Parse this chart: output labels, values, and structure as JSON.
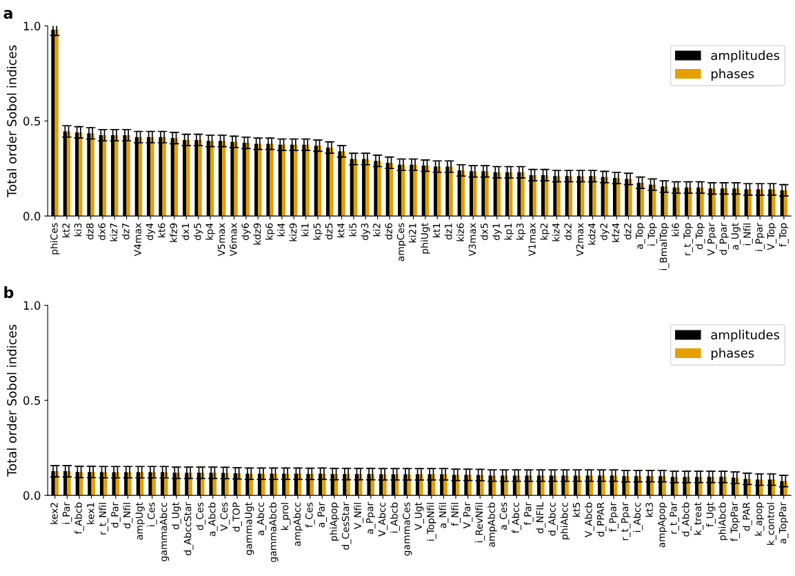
{
  "chart_data": [
    {
      "type": "bar",
      "annotations": [
        "a"
      ],
      "ylabel": "Total order Sobol indices",
      "ylim": [
        0,
        1.0
      ],
      "yticks": [
        {
          "value": 0,
          "label": "0.0"
        },
        {
          "value": 0.5,
          "label": "0.5"
        },
        {
          "value": 1.0,
          "label": "1.0"
        }
      ],
      "grid": false,
      "legend": "top right",
      "categories": [
        "phiCes",
        "kt2",
        "ki3",
        "dz8",
        "dx6",
        "kiz7",
        "dz7",
        "V4max",
        "dy4",
        "kt6",
        "kfz9",
        "dx1",
        "dy5",
        "kp4",
        "V5max",
        "V6max",
        "dy6",
        "kdz9",
        "kp6",
        "ki4",
        "kiz9",
        "ki1",
        "kp5",
        "dz5",
        "kt4",
        "ki5",
        "dy3",
        "ki2",
        "dz6",
        "ampCes",
        "ki21",
        "phiUgt",
        "kt1",
        "dz1",
        "kiz6",
        "V3max",
        "dx5",
        "dy1",
        "kp1",
        "kp3",
        "V1max",
        "kp2",
        "kiz4",
        "dx2",
        "V2max",
        "kdz4",
        "dy2",
        "kfz4",
        "dz2",
        "a_Top",
        "i_Top",
        "i_BmalTop",
        "ki6",
        "r_t_Top",
        "d_Top",
        "V_Ppar",
        "d_Ppar",
        "a_Ugt",
        "i_Nfil",
        "i_Ppar",
        "V_Top",
        "f_Top"
      ],
      "series": [
        {
          "name": "amplitudes",
          "color": "#000000",
          "values": [
            0.98,
            0.445,
            0.44,
            0.435,
            0.425,
            0.425,
            0.425,
            0.415,
            0.415,
            0.415,
            0.41,
            0.4,
            0.4,
            0.395,
            0.395,
            0.39,
            0.385,
            0.38,
            0.38,
            0.375,
            0.375,
            0.375,
            0.37,
            0.36,
            0.34,
            0.3,
            0.3,
            0.29,
            0.28,
            0.27,
            0.27,
            0.265,
            0.26,
            0.26,
            0.24,
            0.235,
            0.235,
            0.23,
            0.23,
            0.23,
            0.215,
            0.215,
            0.21,
            0.21,
            0.21,
            0.21,
            0.205,
            0.2,
            0.195,
            0.175,
            0.165,
            0.155,
            0.15,
            0.15,
            0.15,
            0.145,
            0.145,
            0.145,
            0.14,
            0.14,
            0.14,
            0.135
          ],
          "errors": [
            0.03,
            0.03,
            0.03,
            0.03,
            0.03,
            0.03,
            0.03,
            0.03,
            0.03,
            0.03,
            0.03,
            0.03,
            0.03,
            0.03,
            0.03,
            0.03,
            0.03,
            0.03,
            0.03,
            0.03,
            0.03,
            0.03,
            0.03,
            0.03,
            0.03,
            0.03,
            0.03,
            0.03,
            0.03,
            0.03,
            0.03,
            0.03,
            0.03,
            0.03,
            0.03,
            0.03,
            0.03,
            0.03,
            0.03,
            0.03,
            0.03,
            0.03,
            0.03,
            0.03,
            0.03,
            0.03,
            0.03,
            0.03,
            0.03,
            0.03,
            0.03,
            0.03,
            0.03,
            0.03,
            0.03,
            0.03,
            0.03,
            0.03,
            0.03,
            0.03,
            0.03,
            0.03
          ]
        },
        {
          "name": "phases",
          "color": "#e69f00",
          "values": [
            0.98,
            0.445,
            0.44,
            0.435,
            0.425,
            0.425,
            0.425,
            0.415,
            0.415,
            0.415,
            0.41,
            0.4,
            0.4,
            0.395,
            0.395,
            0.39,
            0.385,
            0.38,
            0.38,
            0.375,
            0.375,
            0.375,
            0.37,
            0.36,
            0.34,
            0.3,
            0.3,
            0.29,
            0.28,
            0.27,
            0.27,
            0.265,
            0.26,
            0.26,
            0.24,
            0.235,
            0.235,
            0.23,
            0.23,
            0.23,
            0.215,
            0.215,
            0.21,
            0.21,
            0.21,
            0.21,
            0.205,
            0.2,
            0.195,
            0.175,
            0.165,
            0.155,
            0.15,
            0.15,
            0.15,
            0.145,
            0.145,
            0.145,
            0.14,
            0.14,
            0.14,
            0.135
          ],
          "errors": [
            0.03,
            0.03,
            0.03,
            0.03,
            0.03,
            0.03,
            0.03,
            0.03,
            0.03,
            0.03,
            0.03,
            0.03,
            0.03,
            0.03,
            0.03,
            0.03,
            0.03,
            0.03,
            0.03,
            0.03,
            0.03,
            0.03,
            0.03,
            0.03,
            0.03,
            0.03,
            0.03,
            0.03,
            0.03,
            0.03,
            0.03,
            0.03,
            0.03,
            0.03,
            0.03,
            0.03,
            0.03,
            0.03,
            0.03,
            0.03,
            0.03,
            0.03,
            0.03,
            0.03,
            0.03,
            0.03,
            0.03,
            0.03,
            0.03,
            0.03,
            0.03,
            0.03,
            0.03,
            0.03,
            0.03,
            0.03,
            0.03,
            0.03,
            0.03,
            0.03,
            0.03,
            0.03
          ]
        }
      ]
    },
    {
      "type": "bar",
      "annotations": [
        "b"
      ],
      "ylabel": "Total order Sobol indices",
      "ylim": [
        0,
        1.0
      ],
      "yticks": [
        {
          "value": 0,
          "label": "0.0"
        },
        {
          "value": 0.5,
          "label": "0.5"
        },
        {
          "value": 1.0,
          "label": "1.0"
        }
      ],
      "grid": false,
      "legend": "top right",
      "categories": [
        "kex2",
        "i_Par",
        "f_Abcb",
        "kex1",
        "r_t_Nfil",
        "d_Par",
        "d_Nfil",
        "ampUgt",
        "i_Ces",
        "gammaAbcc",
        "d_Ugt",
        "d_AbccStar",
        "d_Ces",
        "a_Abcb",
        "V_Ces",
        "d_TOP",
        "gammaUgt",
        "a_Abcc",
        "gammaAbcb",
        "k_prol",
        "ampAbcc",
        "f_Ces",
        "a_Par",
        "phiApop",
        "d_CesStar",
        "V_Nfil",
        "a_Ppar",
        "V_Abcc",
        "i_Abcb",
        "gammaCes",
        "V_Ugt",
        "i_TopNfil",
        "a_Nfil",
        "f_Nfil",
        "V_Par",
        "i_RevNfil",
        "ampAbcb",
        "a_Ces",
        "f_Abcc",
        "f_Par",
        "d_NFIL",
        "d_Abcc",
        "phiAbcc",
        "kt5",
        "V_Abcb",
        "d_PPAR",
        "f_Ppar",
        "r_t_Ppar",
        "i_Abcc",
        "kt3",
        "ampApop",
        "r_t_Par",
        "d_Abcb",
        "k_treat",
        "f_Ugt",
        "phiAbcb",
        "f_TopPar",
        "d_PAR",
        "k_apop",
        "k_control",
        "a_TopPar"
      ],
      "series": [
        {
          "name": "amplitudes",
          "color": "#000000",
          "values": [
            0.127,
            0.127,
            0.123,
            0.123,
            0.122,
            0.122,
            0.122,
            0.122,
            0.122,
            0.122,
            0.119,
            0.119,
            0.119,
            0.119,
            0.118,
            0.116,
            0.114,
            0.114,
            0.114,
            0.114,
            0.114,
            0.113,
            0.114,
            0.112,
            0.112,
            0.112,
            0.112,
            0.111,
            0.111,
            0.111,
            0.111,
            0.111,
            0.111,
            0.108,
            0.108,
            0.107,
            0.104,
            0.104,
            0.104,
            0.104,
            0.104,
            0.104,
            0.104,
            0.104,
            0.104,
            0.104,
            0.104,
            0.101,
            0.101,
            0.101,
            0.101,
            0.097,
            0.097,
            0.097,
            0.097,
            0.097,
            0.093,
            0.087,
            0.083,
            0.083,
            0.075
          ],
          "errors": [
            0.03,
            0.03,
            0.03,
            0.03,
            0.03,
            0.03,
            0.03,
            0.03,
            0.03,
            0.03,
            0.03,
            0.03,
            0.03,
            0.03,
            0.03,
            0.03,
            0.03,
            0.03,
            0.03,
            0.03,
            0.03,
            0.03,
            0.03,
            0.03,
            0.03,
            0.03,
            0.03,
            0.03,
            0.03,
            0.03,
            0.03,
            0.03,
            0.03,
            0.03,
            0.03,
            0.03,
            0.03,
            0.03,
            0.03,
            0.03,
            0.03,
            0.03,
            0.03,
            0.03,
            0.03,
            0.03,
            0.03,
            0.03,
            0.03,
            0.03,
            0.03,
            0.03,
            0.03,
            0.03,
            0.03,
            0.03,
            0.03,
            0.03,
            0.03,
            0.03,
            0.03
          ]
        },
        {
          "name": "phases",
          "color": "#e69f00",
          "values": [
            0.127,
            0.127,
            0.123,
            0.123,
            0.122,
            0.122,
            0.122,
            0.122,
            0.122,
            0.122,
            0.119,
            0.119,
            0.119,
            0.119,
            0.118,
            0.116,
            0.114,
            0.114,
            0.114,
            0.114,
            0.114,
            0.113,
            0.114,
            0.112,
            0.112,
            0.112,
            0.112,
            0.111,
            0.111,
            0.111,
            0.111,
            0.111,
            0.111,
            0.108,
            0.108,
            0.107,
            0.104,
            0.104,
            0.104,
            0.104,
            0.104,
            0.104,
            0.104,
            0.104,
            0.104,
            0.104,
            0.104,
            0.101,
            0.101,
            0.101,
            0.101,
            0.097,
            0.097,
            0.097,
            0.097,
            0.097,
            0.093,
            0.087,
            0.083,
            0.083,
            0.075
          ],
          "errors": [
            0.03,
            0.03,
            0.03,
            0.03,
            0.03,
            0.03,
            0.03,
            0.03,
            0.03,
            0.03,
            0.03,
            0.03,
            0.03,
            0.03,
            0.03,
            0.03,
            0.03,
            0.03,
            0.03,
            0.03,
            0.03,
            0.03,
            0.03,
            0.03,
            0.03,
            0.03,
            0.03,
            0.03,
            0.03,
            0.03,
            0.03,
            0.03,
            0.03,
            0.03,
            0.03,
            0.03,
            0.03,
            0.03,
            0.03,
            0.03,
            0.03,
            0.03,
            0.03,
            0.03,
            0.03,
            0.03,
            0.03,
            0.03,
            0.03,
            0.03,
            0.03,
            0.03,
            0.03,
            0.03,
            0.03,
            0.03,
            0.03,
            0.03,
            0.03,
            0.03,
            0.03
          ]
        }
      ]
    }
  ]
}
